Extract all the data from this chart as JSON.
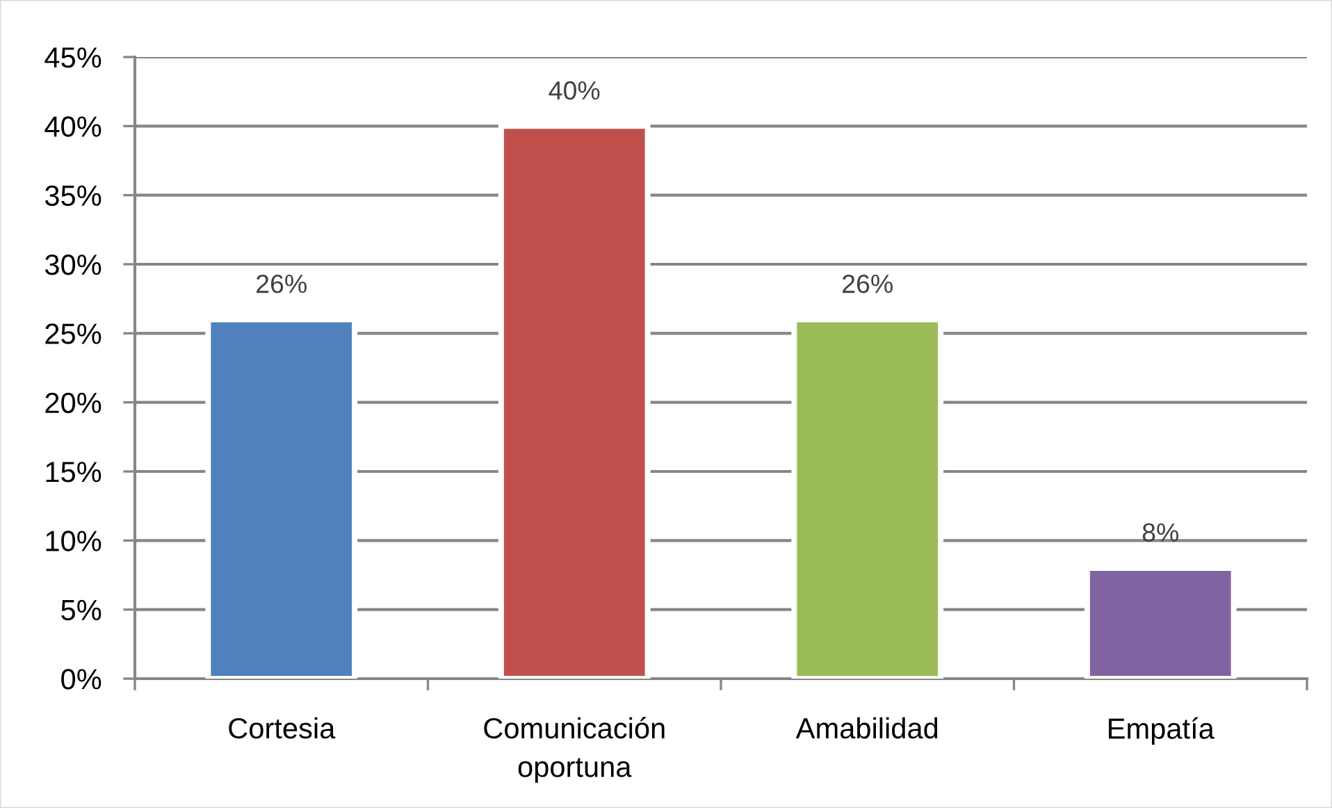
{
  "chart_data": {
    "type": "bar",
    "categories": [
      "Cortesia",
      "Comunicación\noportuna",
      "Amabilidad",
      "Empatía"
    ],
    "values": [
      26,
      40,
      26,
      8
    ],
    "colors": [
      "#4f81bd",
      "#c0504d",
      "#9bbb59",
      "#8064a2"
    ],
    "value_labels": [
      "26%",
      "40%",
      "26%",
      "8%"
    ],
    "ylim": [
      0,
      45
    ],
    "yticks": [
      {
        "value": 0,
        "label": "0%"
      },
      {
        "value": 5,
        "label": "5%"
      },
      {
        "value": 10,
        "label": "10%"
      },
      {
        "value": 15,
        "label": "15%"
      },
      {
        "value": 20,
        "label": "20%"
      },
      {
        "value": 25,
        "label": "25%"
      },
      {
        "value": 30,
        "label": "30%"
      },
      {
        "value": 35,
        "label": "35%"
      },
      {
        "value": 40,
        "label": "40%"
      },
      {
        "value": 45,
        "label": "45%"
      }
    ],
    "grid": "y"
  }
}
